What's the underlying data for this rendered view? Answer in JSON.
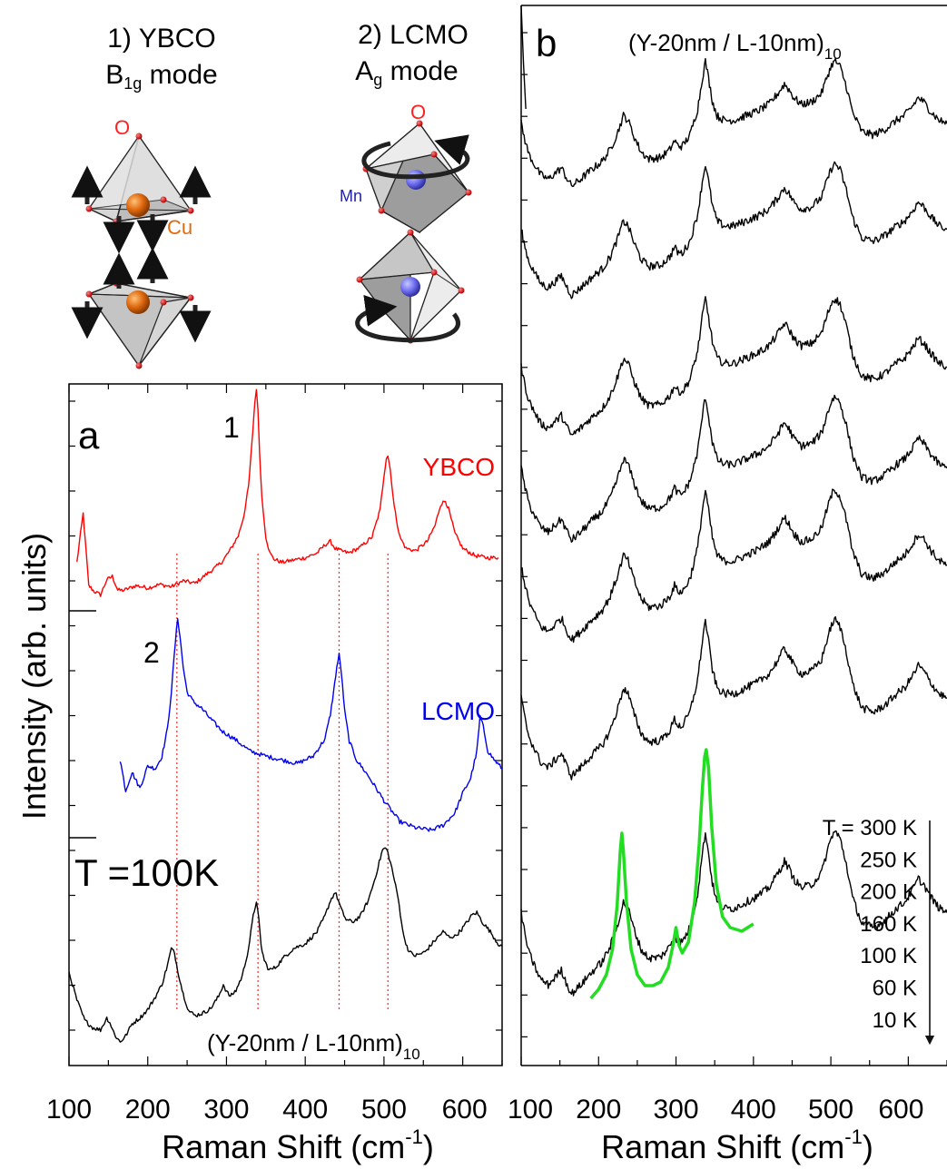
{
  "panel_a": {
    "letter": "a",
    "temperature_label": "T =100K",
    "sample_label": "(Y-20nm / L-10nm)",
    "sample_label_sub": "10",
    "ylabel": "Intensity (arb. units)",
    "xlabel": "Raman Shift (cm",
    "xlabel_sup": "-1",
    "xlabel_end": ")",
    "peak1_label": "1",
    "peak2_label": "2",
    "ybco_label": "YBCO",
    "lcmo_label": "LCMO"
  },
  "panel_b": {
    "letter": "b",
    "sample_label": "(Y-20nm / L-10nm)",
    "sample_label_sub": "10",
    "xlabel": "Raman Shift (cm",
    "xlabel_sup": "-1",
    "xlabel_end": ")",
    "temps": [
      "T = 300 K",
      "250 K",
      "200 K",
      "160 K",
      "100 K",
      "60 K",
      "10 K"
    ]
  },
  "diagram_ybco": {
    "title1": "1) YBCO",
    "title2_pre": "B",
    "title2_sub": "1g",
    "title2_post": " mode",
    "o_label": "O",
    "cu_label": "Cu"
  },
  "diagram_lcmo": {
    "title1": "2) LCMO",
    "title2_pre": "A",
    "title2_sub": "g",
    "title2_post": " mode",
    "o_label": "O",
    "mn_label": "Mn"
  },
  "colors": {
    "ybco": "#ff0000",
    "lcmo": "#0000ee",
    "superlattice": "#000000",
    "fit": "#22dd22",
    "guide": "#ff3333",
    "orange_atom": "#e06a10",
    "mn_atom": "#6a6aee"
  },
  "chart_data": [
    {
      "type": "line",
      "panel": "a",
      "xlim": [
        100,
        650
      ],
      "xticks": [
        100,
        200,
        300,
        400,
        500,
        600
      ],
      "guides_x": [
        237,
        340,
        443,
        505
      ],
      "series": [
        {
          "name": "YBCO",
          "x": [
            110,
            118,
            125,
            132,
            140,
            148,
            155,
            162,
            170,
            185,
            200,
            215,
            230,
            245,
            260,
            275,
            285,
            295,
            305,
            315,
            322,
            328,
            332,
            336,
            338,
            340,
            342,
            345,
            350,
            355,
            360,
            370,
            385,
            400,
            415,
            425,
            432,
            438,
            445,
            455,
            470,
            485,
            495,
            500,
            503,
            505,
            508,
            513,
            520,
            528,
            540,
            555,
            565,
            572,
            578,
            582,
            590,
            600,
            615,
            630,
            645
          ],
          "y": [
            0.3,
            0.72,
            0.1,
            0.05,
            0.02,
            0.15,
            0.18,
            0.06,
            0.06,
            0.1,
            0.08,
            0.11,
            0.09,
            0.14,
            0.12,
            0.2,
            0.25,
            0.31,
            0.41,
            0.53,
            0.7,
            0.95,
            1.3,
            1.68,
            1.8,
            1.6,
            1.25,
            0.85,
            0.52,
            0.38,
            0.33,
            0.3,
            0.32,
            0.34,
            0.38,
            0.45,
            0.48,
            0.42,
            0.4,
            0.38,
            0.43,
            0.52,
            0.75,
            1.05,
            1.2,
            1.22,
            1.1,
            0.78,
            0.52,
            0.42,
            0.4,
            0.48,
            0.62,
            0.8,
            0.83,
            0.76,
            0.55,
            0.42,
            0.36,
            0.34,
            0.34
          ]
        },
        {
          "name": "LCMO",
          "x": [
            165,
            172,
            180,
            190,
            200,
            210,
            218,
            225,
            230,
            235,
            238,
            241,
            245,
            250,
            258,
            268,
            280,
            295,
            310,
            330,
            350,
            370,
            390,
            410,
            425,
            432,
            436,
            440,
            443,
            446,
            450,
            456,
            465,
            480,
            500,
            520,
            540,
            560,
            575,
            590,
            600,
            610,
            618,
            622,
            626,
            632,
            640,
            650
          ],
          "y": [
            0.55,
            0.3,
            0.45,
            0.32,
            0.5,
            0.48,
            0.58,
            0.8,
            1.1,
            1.5,
            1.7,
            1.55,
            1.3,
            1.1,
            1.02,
            0.97,
            0.88,
            0.78,
            0.72,
            0.62,
            0.58,
            0.55,
            0.52,
            0.58,
            0.72,
            0.92,
            1.1,
            1.3,
            1.4,
            1.25,
            0.95,
            0.7,
            0.55,
            0.42,
            0.22,
            0.05,
            0.0,
            -0.02,
            0.02,
            0.12,
            0.28,
            0.4,
            0.62,
            0.9,
            0.82,
            0.62,
            0.55,
            0.48
          ]
        },
        {
          "name": "(Y-20nm / L-10nm)10 T=100K",
          "x": [
            100,
            110,
            120,
            130,
            140,
            148,
            152,
            158,
            165,
            172,
            180,
            190,
            200,
            210,
            218,
            225,
            230,
            234,
            238,
            245,
            252,
            260,
            270,
            280,
            290,
            296,
            300,
            305,
            312,
            320,
            328,
            334,
            338,
            341,
            344,
            348,
            354,
            362,
            372,
            385,
            400,
            415,
            425,
            432,
            438,
            442,
            446,
            452,
            460,
            470,
            480,
            488,
            494,
            498,
            502,
            505,
            510,
            518,
            525,
            532,
            540,
            552,
            565,
            575,
            582,
            590,
            600,
            612,
            618,
            625,
            635,
            645,
            650
          ],
          "y": [
            0.58,
            0.35,
            0.18,
            0.12,
            0.1,
            0.2,
            0.16,
            0.06,
            0.0,
            0.05,
            0.15,
            0.2,
            0.27,
            0.38,
            0.48,
            0.64,
            0.78,
            0.74,
            0.6,
            0.4,
            0.26,
            0.22,
            0.24,
            0.28,
            0.38,
            0.48,
            0.42,
            0.38,
            0.43,
            0.55,
            0.78,
            1.05,
            1.18,
            1.02,
            0.8,
            0.68,
            0.6,
            0.62,
            0.7,
            0.78,
            0.82,
            0.92,
            1.05,
            1.18,
            1.25,
            1.18,
            1.1,
            1.02,
            1.0,
            1.05,
            1.18,
            1.35,
            1.5,
            1.6,
            1.62,
            1.58,
            1.45,
            1.2,
            0.88,
            0.75,
            0.72,
            0.75,
            0.85,
            0.92,
            0.88,
            0.88,
            0.95,
            1.06,
            1.08,
            1.0,
            0.92,
            0.82,
            0.8
          ]
        }
      ]
    },
    {
      "type": "line",
      "panel": "b",
      "xlim": [
        100,
        650
      ],
      "xticks": [
        100,
        200,
        300,
        400,
        500,
        600
      ],
      "curves_top_to_bottom_temperatures": [
        "300 K",
        "250 K",
        "200 K",
        "160 K",
        "100 K",
        "60 K",
        "10 K"
      ],
      "curve_shape": {
        "x": [
          100,
          105,
          110,
          118,
          125,
          135,
          145,
          152,
          158,
          165,
          175,
          190,
          205,
          215,
          225,
          232,
          238,
          245,
          255,
          265,
          280,
          292,
          298,
          302,
          308,
          318,
          328,
          334,
          338,
          342,
          347,
          353,
          362,
          375,
          390,
          405,
          420,
          432,
          440,
          446,
          452,
          462,
          475,
          488,
          496,
          502,
          506,
          512,
          520,
          528,
          540,
          555,
          570,
          585,
          595,
          605,
          613,
          620,
          630,
          640,
          650
        ],
        "y": [
          0.55,
          0.4,
          0.28,
          0.18,
          0.1,
          0.06,
          0.12,
          0.16,
          0.08,
          0.0,
          0.05,
          0.14,
          0.22,
          0.32,
          0.48,
          0.62,
          0.58,
          0.45,
          0.3,
          0.24,
          0.25,
          0.32,
          0.4,
          0.36,
          0.35,
          0.45,
          0.68,
          0.95,
          1.1,
          0.95,
          0.75,
          0.62,
          0.58,
          0.58,
          0.62,
          0.66,
          0.72,
          0.82,
          0.9,
          0.85,
          0.78,
          0.72,
          0.74,
          0.82,
          0.98,
          1.08,
          1.1,
          1.05,
          0.88,
          0.65,
          0.48,
          0.45,
          0.5,
          0.58,
          0.62,
          0.7,
          0.78,
          0.74,
          0.65,
          0.58,
          0.55
        ]
      },
      "fit_on_10K": {
        "x": [
          190,
          200,
          210,
          218,
          224,
          228,
          230,
          232,
          236,
          242,
          250,
          260,
          270,
          280,
          290,
          296,
          300,
          304,
          308,
          316,
          324,
          330,
          334,
          337,
          339,
          342,
          346,
          352,
          360,
          370,
          385,
          400
        ],
        "y": [
          0.15,
          0.2,
          0.28,
          0.42,
          0.66,
          0.96,
          1.06,
          0.96,
          0.68,
          0.42,
          0.28,
          0.22,
          0.22,
          0.24,
          0.32,
          0.44,
          0.54,
          0.44,
          0.4,
          0.46,
          0.68,
          1.0,
          1.3,
          1.48,
          1.52,
          1.42,
          1.1,
          0.78,
          0.6,
          0.54,
          0.52,
          0.56
        ]
      }
    }
  ]
}
